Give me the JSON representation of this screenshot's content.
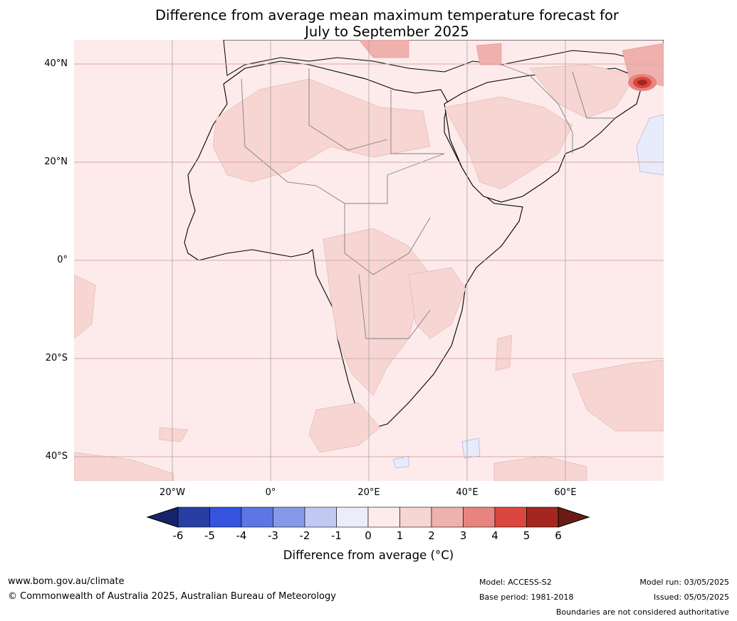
{
  "title": {
    "line1": "Difference from average mean maximum temperature forecast for",
    "line2": "July to September 2025"
  },
  "map": {
    "lat_labels": [
      "40°N",
      "20°N",
      "0°",
      "20°S",
      "40°S"
    ],
    "lon_labels": [
      "20°W",
      "0°",
      "20°E",
      "40°E",
      "60°E"
    ],
    "colors": {
      "ocean": "#fcebea",
      "anom_1_2": "#f6d5d3",
      "anom_2_3": "#efb1ad",
      "anom_3_4": "#e8847f",
      "anom_5_6": "#a4271f",
      "anom_below": "#e8ebfa",
      "coast": "#000000",
      "border": "#808080",
      "grid": "#d9a9a6"
    }
  },
  "colorbar": {
    "ticks": [
      "-6",
      "-5",
      "-4",
      "-3",
      "-2",
      "-1",
      "0",
      "1",
      "2",
      "3",
      "4",
      "5",
      "6"
    ],
    "colors": [
      "#283ea3",
      "#3453df",
      "#5c76e4",
      "#8599e8",
      "#c1c9f2",
      "#ebedfb",
      "#fcebea",
      "#f6d5d3",
      "#efb1ad",
      "#e8847f",
      "#d9473e",
      "#a4271f"
    ],
    "low_extend": "#16246b",
    "high_extend": "#6b1b15",
    "label": "Difference from average (°C)"
  },
  "footer": {
    "website": "www.bom.gov.au/climate",
    "copyright": "© Commonwealth of Australia 2025, Australian Bureau of Meteorology",
    "model": "Model: ACCESS-S2",
    "base_period": "Base period: 1981-2018",
    "model_run": "Model run: 03/05/2025",
    "issued": "Issued: 05/05/2025",
    "disclaimer": "Boundaries are not considered authoritative"
  }
}
